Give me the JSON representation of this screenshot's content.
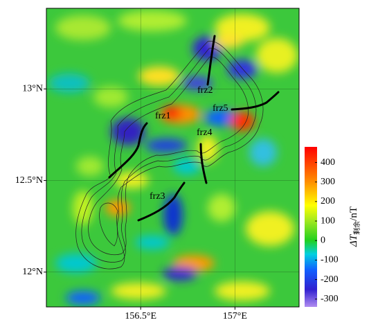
{
  "map": {
    "xlim": [
      156.0,
      157.34
    ],
    "ylim": [
      11.81,
      13.44
    ],
    "xticks": [
      {
        "value": 156.5,
        "label": "156.5°E"
      },
      {
        "value": 157,
        "label": "157°E"
      }
    ],
    "yticks": [
      {
        "value": 12,
        "label": "12°N"
      },
      {
        "value": 12.5,
        "label": "12.5°N"
      },
      {
        "value": 13,
        "label": "13°N"
      }
    ],
    "faults": [
      {
        "label": "frz1"
      },
      {
        "label": "frz2"
      },
      {
        "label": "frz3"
      },
      {
        "label": "frz4"
      },
      {
        "label": "frz5"
      }
    ],
    "colorbar": {
      "lim": [
        -340,
        480
      ],
      "ticks": [
        400,
        300,
        200,
        100,
        0,
        -100,
        -200,
        -300
      ],
      "label": "ΔT",
      "label_sub": "剩余",
      "label_unit": "/nT",
      "colormap": [
        {
          "value": -340,
          "color": "#b08cf0"
        },
        {
          "value": -250,
          "color": "#3020d0"
        },
        {
          "value": -150,
          "color": "#1060ff"
        },
        {
          "value": -70,
          "color": "#00d0e0"
        },
        {
          "value": 0,
          "color": "#20d020"
        },
        {
          "value": 100,
          "color": "#a0e820"
        },
        {
          "value": 180,
          "color": "#ffff00"
        },
        {
          "value": 300,
          "color": "#ff9000"
        },
        {
          "value": 480,
          "color": "#ff0000"
        }
      ]
    }
  }
}
